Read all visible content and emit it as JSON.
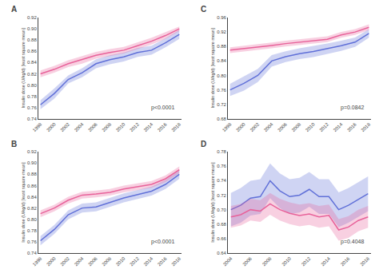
{
  "chart_data": [
    {
      "type": "line",
      "title": "A",
      "ylabel": "Insulin dose (U/kg/d) [least square mean]",
      "annotations": [
        "p<0.0001"
      ],
      "grid": false,
      "x": [
        1998,
        2000,
        2002,
        2004,
        2006,
        2008,
        2010,
        2012,
        2014,
        2016,
        2018
      ],
      "xlim": [
        1997.7,
        2018.3
      ],
      "xticks": [
        1998,
        2000,
        2002,
        2004,
        2006,
        2008,
        2010,
        2012,
        2014,
        2016,
        2018
      ],
      "ylim": [
        0.74,
        0.92
      ],
      "yticks": [
        0.74,
        0.76,
        0.78,
        {
          "value": 0.8,
          "label": "0.80"
        },
        0.82,
        0.84,
        0.86,
        0.88,
        {
          "value": 0.9,
          "label": "0.90"
        },
        0.92
      ],
      "series": [
        {
          "color": "#6070D8",
          "values": [
            0.765,
            0.785,
            0.81,
            0.822,
            0.838,
            0.845,
            0.85,
            0.858,
            0.862,
            0.875,
            0.89
          ],
          "lo": [
            0.757,
            0.776,
            0.803,
            0.814,
            0.83,
            0.837,
            0.842,
            0.85,
            0.854,
            0.867,
            0.882
          ],
          "hi": [
            0.773,
            0.794,
            0.817,
            0.83,
            0.846,
            0.853,
            0.858,
            0.866,
            0.87,
            0.883,
            0.898
          ]
        },
        {
          "color": "#E8629A",
          "values": [
            0.82,
            0.828,
            0.838,
            0.845,
            0.853,
            0.858,
            0.862,
            0.87,
            0.878,
            0.888,
            0.9
          ],
          "lo": [
            0.814,
            0.822,
            0.832,
            0.838,
            0.847,
            0.852,
            0.856,
            0.864,
            0.872,
            0.882,
            0.896
          ],
          "hi": [
            0.826,
            0.834,
            0.844,
            0.852,
            0.859,
            0.864,
            0.868,
            0.876,
            0.884,
            0.894,
            0.904
          ]
        }
      ]
    },
    {
      "type": "line",
      "title": "B",
      "ylabel": "Insulin dose (U/kg/d) [least square mean]",
      "annotations": [
        "p<0.0001"
      ],
      "grid": false,
      "x": [
        1998,
        2000,
        2002,
        2004,
        2006,
        2008,
        2010,
        2012,
        2014,
        2016,
        2018
      ],
      "xlim": [
        1997.7,
        2018.3
      ],
      "xticks": [
        1998,
        2000,
        2002,
        2004,
        2006,
        2008,
        2010,
        2012,
        2014,
        2016,
        2018
      ],
      "ylim": [
        0.74,
        0.92
      ],
      "yticks": [
        0.74,
        0.76,
        0.78,
        {
          "value": 0.8,
          "label": "0.80"
        },
        0.82,
        0.84,
        0.86,
        0.88,
        {
          "value": 0.9,
          "label": "0.90"
        },
        0.92
      ],
      "series": [
        {
          "color": "#6070D8",
          "values": [
            0.762,
            0.782,
            0.808,
            0.82,
            0.822,
            0.83,
            0.838,
            0.844,
            0.85,
            0.862,
            0.88
          ],
          "lo": [
            0.754,
            0.774,
            0.8,
            0.812,
            0.814,
            0.822,
            0.83,
            0.836,
            0.842,
            0.854,
            0.872
          ],
          "hi": [
            0.77,
            0.79,
            0.816,
            0.828,
            0.83,
            0.838,
            0.846,
            0.852,
            0.858,
            0.87,
            0.888
          ]
        },
        {
          "color": "#E8629A",
          "values": [
            0.81,
            0.82,
            0.834,
            0.843,
            0.845,
            0.848,
            0.854,
            0.858,
            0.862,
            0.872,
            0.888
          ],
          "lo": [
            0.804,
            0.814,
            0.828,
            0.837,
            0.839,
            0.842,
            0.848,
            0.852,
            0.856,
            0.866,
            0.882
          ],
          "hi": [
            0.816,
            0.826,
            0.84,
            0.849,
            0.851,
            0.854,
            0.86,
            0.864,
            0.868,
            0.878,
            0.894
          ]
        }
      ]
    },
    {
      "type": "line",
      "title": "C",
      "ylabel": "Insulin dose (U/kg/d) [least square mean]",
      "annotations": [
        "p=0.0842"
      ],
      "grid": false,
      "x": [
        1998,
        2000,
        2002,
        2004,
        2006,
        2008,
        2010,
        2012,
        2014,
        2016,
        2018
      ],
      "xlim": [
        1997.7,
        2018.3
      ],
      "xticks": [
        1998,
        2000,
        2002,
        2004,
        2006,
        2008,
        2010,
        2012,
        2014,
        2016,
        2018
      ],
      "ylim": [
        0.68,
        0.96
      ],
      "yticks": [
        0.68,
        0.72,
        0.76,
        {
          "value": 0.8,
          "label": "0.80"
        },
        0.84,
        0.88,
        0.92,
        0.96
      ],
      "series": [
        {
          "color": "#6070D8",
          "values": [
            0.76,
            0.778,
            0.8,
            0.84,
            0.852,
            0.86,
            0.866,
            0.874,
            0.882,
            0.892,
            0.916
          ],
          "lo": [
            0.743,
            0.758,
            0.782,
            0.824,
            0.837,
            0.845,
            0.851,
            0.86,
            0.868,
            0.879,
            0.904
          ],
          "hi": [
            0.777,
            0.798,
            0.818,
            0.856,
            0.867,
            0.875,
            0.881,
            0.888,
            0.896,
            0.905,
            0.928
          ]
        },
        {
          "color": "#E8629A",
          "values": [
            0.87,
            0.874,
            0.878,
            0.883,
            0.888,
            0.892,
            0.895,
            0.9,
            0.912,
            0.92,
            0.933
          ],
          "lo": [
            0.862,
            0.866,
            0.87,
            0.875,
            0.88,
            0.884,
            0.887,
            0.892,
            0.904,
            0.912,
            0.925
          ],
          "hi": [
            0.878,
            0.882,
            0.886,
            0.891,
            0.896,
            0.9,
            0.903,
            0.908,
            0.92,
            0.928,
            0.941
          ]
        }
      ]
    },
    {
      "type": "line",
      "title": "D",
      "ylabel": "Insulin dose (U/kg/d) [least square mean]",
      "annotations": [
        "p=0.4048"
      ],
      "grid": false,
      "x": [
        2004,
        2005,
        2006,
        2007,
        2008,
        2009,
        2010,
        2011,
        2012,
        2013,
        2014,
        2015,
        2016,
        2017,
        2018
      ],
      "xlim": [
        2003.7,
        2018.3
      ],
      "xticks": [
        2004,
        2006,
        2008,
        2010,
        2012,
        2014,
        2016,
        2018
      ],
      "ylim": [
        0.64,
        0.78
      ],
      "yticks": [
        0.64,
        0.66,
        0.68,
        {
          "value": 0.7,
          "label": "0.70"
        },
        0.72,
        0.74,
        0.76,
        0.78
      ],
      "series": [
        {
          "color": "#6070D8",
          "values": [
            0.7,
            0.706,
            0.716,
            0.718,
            0.74,
            0.726,
            0.718,
            0.72,
            0.728,
            0.718,
            0.718,
            0.7,
            0.706,
            0.714,
            0.722
          ],
          "lo": [
            0.677,
            0.682,
            0.692,
            0.694,
            0.716,
            0.702,
            0.694,
            0.696,
            0.704,
            0.694,
            0.694,
            0.676,
            0.682,
            0.69,
            0.698
          ],
          "hi": [
            0.723,
            0.73,
            0.74,
            0.742,
            0.764,
            0.75,
            0.742,
            0.744,
            0.752,
            0.742,
            0.742,
            0.724,
            0.73,
            0.738,
            0.746
          ]
        },
        {
          "color": "#E8629A",
          "values": [
            0.69,
            0.693,
            0.7,
            0.698,
            0.708,
            0.7,
            0.695,
            0.692,
            0.694,
            0.69,
            0.692,
            0.672,
            0.676,
            0.685,
            0.69
          ],
          "lo": [
            0.675,
            0.678,
            0.685,
            0.683,
            0.693,
            0.685,
            0.68,
            0.677,
            0.679,
            0.675,
            0.677,
            0.657,
            0.661,
            0.67,
            0.675
          ],
          "hi": [
            0.705,
            0.708,
            0.715,
            0.713,
            0.723,
            0.715,
            0.71,
            0.707,
            0.709,
            0.705,
            0.707,
            0.687,
            0.691,
            0.7,
            0.705
          ]
        }
      ]
    }
  ]
}
